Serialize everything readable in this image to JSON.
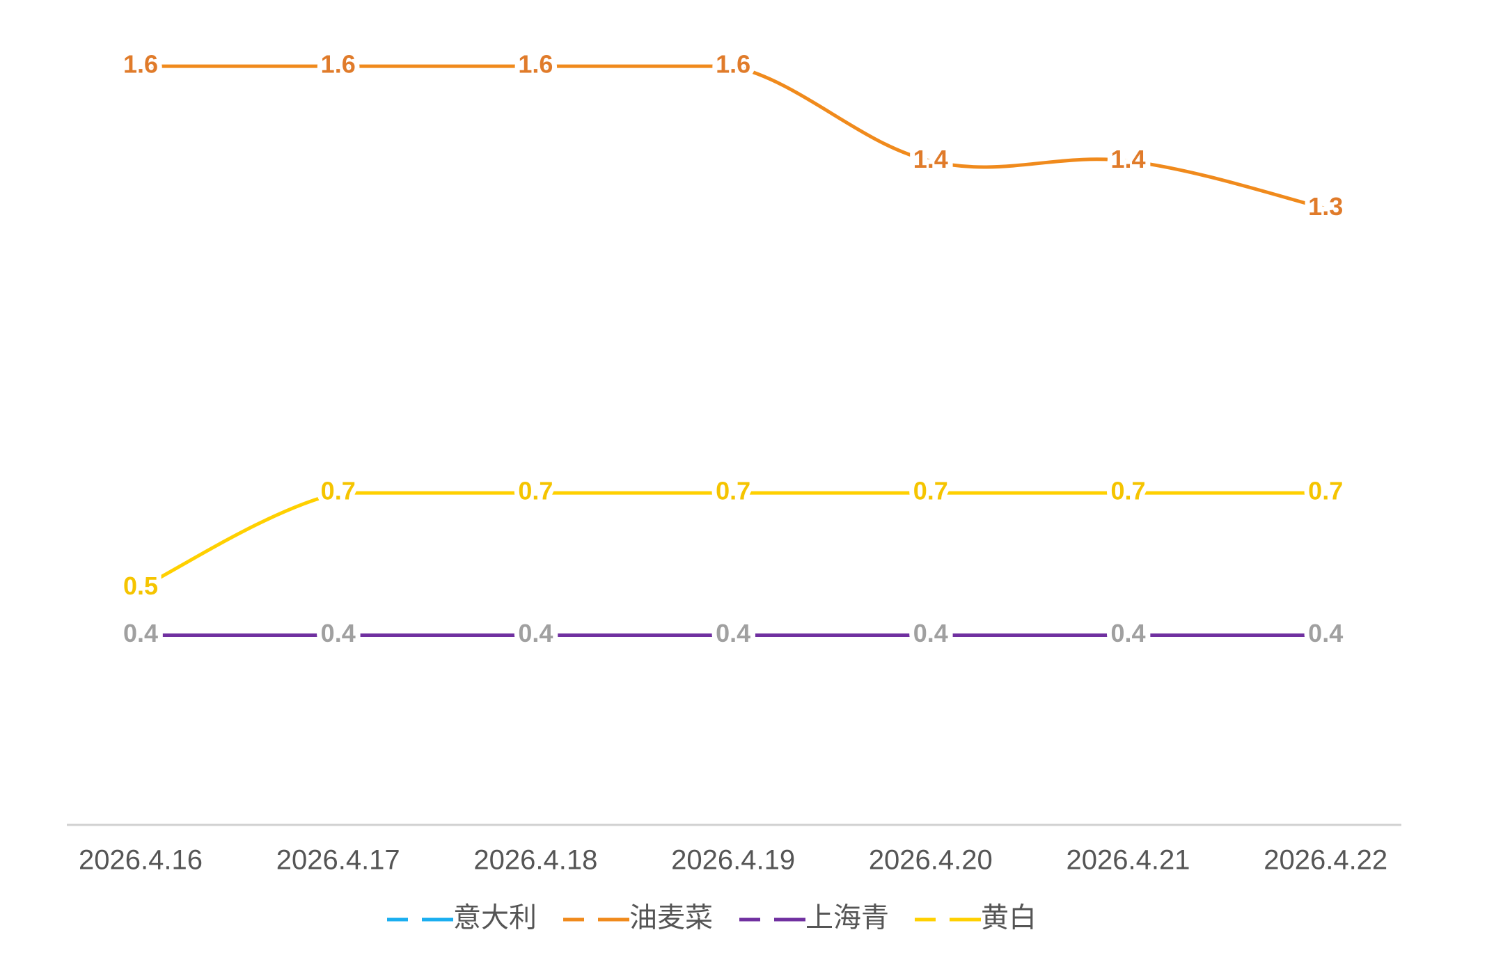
{
  "chart_data": {
    "type": "line",
    "categories": [
      "2026.4.16",
      "2026.4.17",
      "2026.4.18",
      "2026.4.19",
      "2026.4.20",
      "2026.4.21",
      "2026.4.22"
    ],
    "series": [
      {
        "name": "意大利",
        "color": "#1aaef0",
        "values": [
          0.4,
          0.4,
          0.4,
          0.4,
          0.4,
          0.4,
          0.4
        ]
      },
      {
        "name": "油麦菜",
        "color": "#f08a1c",
        "label_color": "#e07b2a",
        "values": [
          1.6,
          1.6,
          1.6,
          1.6,
          1.4,
          1.4,
          1.3
        ]
      },
      {
        "name": "上海青",
        "color": "#7030a0",
        "label_color": "#a0a0a0",
        "values": [
          0.4,
          0.4,
          0.4,
          0.4,
          0.4,
          0.4,
          0.4
        ]
      },
      {
        "name": "黄白",
        "color": "#ffd000",
        "label_color": "#f5c400",
        "values": [
          0.5,
          0.7,
          0.7,
          0.7,
          0.7,
          0.7,
          0.7
        ]
      }
    ],
    "ylim": [
      0,
      1.7
    ],
    "smooth": true
  }
}
